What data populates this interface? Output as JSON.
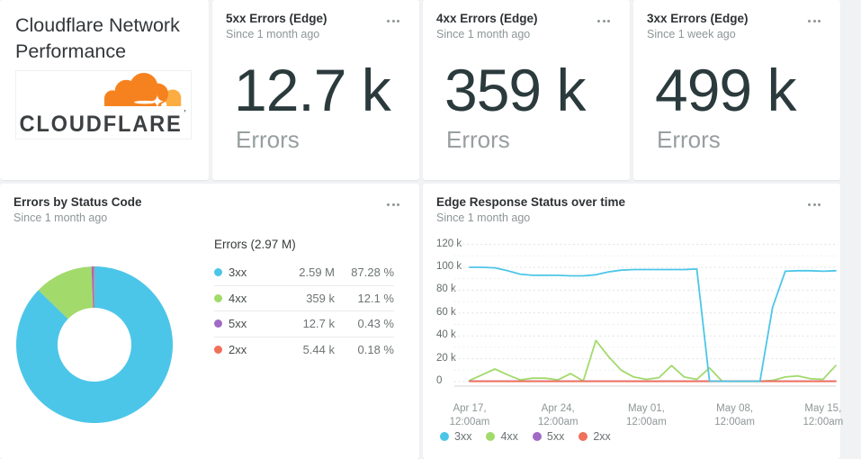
{
  "title_card": {
    "title": "Cloudflare Network Performance",
    "logo_text": "CLOUDFLARE"
  },
  "stat_cards": [
    {
      "title": "5xx Errors (Edge)",
      "subtitle": "Since 1 month ago",
      "value": "12.7 k",
      "unit": "Errors"
    },
    {
      "title": "4xx Errors (Edge)",
      "subtitle": "Since 1 month ago",
      "value": "359 k",
      "unit": "Errors"
    },
    {
      "title": "3xx Errors (Edge)",
      "subtitle": "Since 1 week ago",
      "value": "499 k",
      "unit": "Errors"
    }
  ],
  "donut_card": {
    "title": "Errors by Status Code",
    "subtitle": "Since 1 month ago"
  },
  "chart_card": {
    "title": "Edge Response Status over time",
    "subtitle": "Since 1 month ago"
  },
  "chart_data": [
    {
      "type": "pie",
      "donut": true,
      "title": "Errors by Status Code",
      "total_label": "Errors (2.97 M)",
      "rows": [
        {
          "label": "3xx",
          "value_text": "2.59 M",
          "value_k": 2590,
          "pct": 87.28,
          "pct_text": "87.28 %",
          "color": "#4cc6e8"
        },
        {
          "label": "4xx",
          "value_text": "359 k",
          "value_k": 359,
          "pct": 12.1,
          "pct_text": "12.1 %",
          "color": "#a2da6c"
        },
        {
          "label": "5xx",
          "value_text": "12.7 k",
          "value_k": 12.7,
          "pct": 0.43,
          "pct_text": "0.43 %",
          "color": "#a16bc4"
        },
        {
          "label": "2xx",
          "value_text": "5.44 k",
          "value_k": 5.44,
          "pct": 0.18,
          "pct_text": "0.18 %",
          "color": "#f0705a"
        }
      ]
    },
    {
      "type": "line",
      "title": "Edge Response Status over time",
      "ylim_k": [
        0,
        120
      ],
      "grid": "dotted-horizontal",
      "legend_position": "bottom-left",
      "y_ticks": [
        {
          "v": 0,
          "label": "0"
        },
        {
          "v": 20,
          "label": "20 k"
        },
        {
          "v": 40,
          "label": "40 k"
        },
        {
          "v": 60,
          "label": "60 k"
        },
        {
          "v": 80,
          "label": "80 k"
        },
        {
          "v": 100,
          "label": "100 k"
        },
        {
          "v": 120,
          "label": "120 k"
        }
      ],
      "x_ticks": [
        {
          "day": 0,
          "label": "Apr 17,\n12:00am"
        },
        {
          "day": 7,
          "label": "Apr 24,\n12:00am"
        },
        {
          "day": 14,
          "label": "May 01,\n12:00am"
        },
        {
          "day": 21,
          "label": "May 08,\n12:00am"
        },
        {
          "day": 28,
          "label": "May 15,\n12:00am"
        }
      ],
      "series": [
        {
          "name": "3xx",
          "color": "#4cc6e8",
          "values_k": [
            100,
            100,
            99.5,
            97,
            94,
            93,
            93,
            93,
            92.5,
            92.5,
            93.5,
            96,
            97.5,
            98,
            98,
            98,
            98,
            98,
            98.5,
            0.5,
            0.3,
            0.3,
            0.3,
            0.3,
            65,
            96.5,
            97,
            97,
            96.5,
            97
          ]
        },
        {
          "name": "4xx",
          "color": "#a2da6c",
          "values_k": [
            1,
            6,
            11,
            6,
            1.5,
            3,
            3,
            1.5,
            7,
            0.5,
            36,
            22,
            10,
            4,
            2,
            3.5,
            14,
            4,
            2,
            12,
            0.3,
            0.2,
            0.2,
            0.2,
            1,
            4,
            5,
            2.5,
            2,
            14
          ]
        },
        {
          "name": "5xx",
          "color": "#a16bc4",
          "values_k": [
            0.4,
            0.4,
            0.4,
            0.4,
            0.4,
            0.4,
            0.4,
            0.4,
            0.4,
            0.4,
            0.4,
            0.4,
            0.4,
            0.4,
            0.4,
            0.4,
            0.4,
            0.4,
            0.4,
            0.4,
            0.4,
            0.4,
            0.4,
            0.4,
            0.4,
            0.4,
            0.4,
            0.4,
            0.4,
            0.4
          ]
        },
        {
          "name": "2xx",
          "color": "#f0705a",
          "values_k": [
            0.2,
            0.2,
            0.2,
            0.2,
            0.2,
            0.2,
            0.2,
            0.2,
            0.2,
            0.2,
            0.2,
            0.2,
            0.2,
            0.2,
            0.2,
            0.2,
            0.2,
            0.2,
            0.2,
            0.2,
            0.2,
            0.2,
            0.2,
            0.2,
            0.2,
            0.2,
            0.2,
            0.2,
            0.2,
            0.2
          ]
        }
      ],
      "draw_order": [
        1,
        2,
        3,
        0
      ]
    }
  ]
}
